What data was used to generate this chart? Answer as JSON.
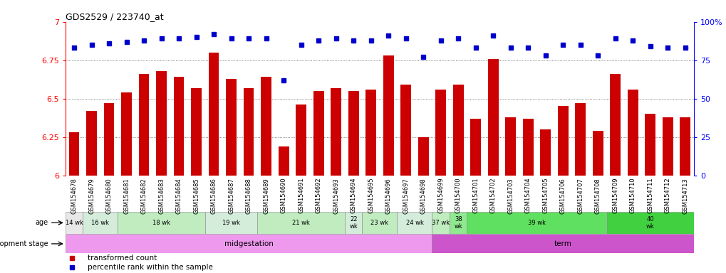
{
  "title": "GDS2529 / 223740_at",
  "samples": [
    "GSM154678",
    "GSM154679",
    "GSM154680",
    "GSM154681",
    "GSM154682",
    "GSM154683",
    "GSM154684",
    "GSM154685",
    "GSM154686",
    "GSM154687",
    "GSM154688",
    "GSM154689",
    "GSM154690",
    "GSM154691",
    "GSM154692",
    "GSM154693",
    "GSM154694",
    "GSM154695",
    "GSM154696",
    "GSM154697",
    "GSM154698",
    "GSM154699",
    "GSM154700",
    "GSM154701",
    "GSM154702",
    "GSM154703",
    "GSM154704",
    "GSM154705",
    "GSM154706",
    "GSM154707",
    "GSM154708",
    "GSM154709",
    "GSM154710",
    "GSM154711",
    "GSM154712",
    "GSM154713"
  ],
  "bar_values": [
    6.28,
    6.42,
    6.47,
    6.54,
    6.66,
    6.68,
    6.64,
    6.57,
    6.8,
    6.63,
    6.57,
    6.64,
    6.19,
    6.46,
    6.55,
    6.57,
    6.55,
    6.56,
    6.78,
    6.59,
    6.25,
    6.56,
    6.59,
    6.37,
    6.76,
    6.38,
    6.37,
    6.3,
    6.45,
    6.47,
    6.29,
    6.66,
    6.56,
    6.4,
    6.38,
    6.38
  ],
  "percentile_values": [
    83,
    85,
    86,
    87,
    88,
    89,
    89,
    90,
    92,
    89,
    89,
    89,
    62,
    85,
    88,
    89,
    88,
    88,
    91,
    89,
    77,
    88,
    89,
    83,
    91,
    83,
    83,
    78,
    85,
    85,
    78,
    89,
    88,
    84,
    83,
    83
  ],
  "ylim_left": [
    6.0,
    7.0
  ],
  "ylim_right": [
    0,
    100
  ],
  "yticks_left": [
    6.0,
    6.25,
    6.5,
    6.75,
    7.0
  ],
  "yticks_right": [
    0,
    25,
    50,
    75,
    100
  ],
  "bar_color": "#cc0000",
  "dot_color": "#0000cc",
  "age_group_data": [
    {
      "label": "14 wk",
      "start": 0,
      "end": 1,
      "color": "#e8e8e8"
    },
    {
      "label": "16 wk",
      "start": 1,
      "end": 3,
      "color": "#d4edda"
    },
    {
      "label": "18 wk",
      "start": 3,
      "end": 8,
      "color": "#c0ecc0"
    },
    {
      "label": "19 wk",
      "start": 8,
      "end": 11,
      "color": "#d4edda"
    },
    {
      "label": "21 wk",
      "start": 11,
      "end": 16,
      "color": "#c0ecc0"
    },
    {
      "label": "22\nwk",
      "start": 16,
      "end": 17,
      "color": "#d4edda"
    },
    {
      "label": "23 wk",
      "start": 17,
      "end": 19,
      "color": "#c0ecc0"
    },
    {
      "label": "24 wk",
      "start": 19,
      "end": 21,
      "color": "#d4edda"
    },
    {
      "label": "37 wk",
      "start": 21,
      "end": 22,
      "color": "#c0ecc0"
    },
    {
      "label": "38\nwk",
      "start": 22,
      "end": 23,
      "color": "#90e890"
    },
    {
      "label": "39 wk",
      "start": 23,
      "end": 31,
      "color": "#60e060"
    },
    {
      "label": "40\nwk",
      "start": 31,
      "end": 36,
      "color": "#40d040"
    }
  ],
  "dev_groups": [
    {
      "label": "midgestation",
      "start": 0,
      "end": 21,
      "color": "#ee99ee"
    },
    {
      "label": "term",
      "start": 21,
      "end": 36,
      "color": "#cc55cc"
    }
  ]
}
